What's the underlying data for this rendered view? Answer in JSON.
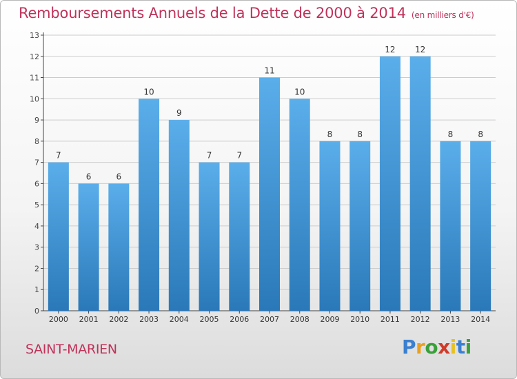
{
  "title": "Remboursements Annuels de la Dette de 2000 à 2014",
  "subtitle": "(en milliers d'€)",
  "city": "SAINT-MARIEN",
  "logo": {
    "text": "Proxiti",
    "letters": [
      "P",
      "r",
      "o",
      "x",
      "i",
      "t",
      "i"
    ],
    "colors": [
      "#3a7fd0",
      "#e8a020",
      "#3aa03a",
      "#d03a2a",
      "#e8c020",
      "#3a7fd0",
      "#3aa03a"
    ]
  },
  "colors": {
    "bar_top": "#5aaeea",
    "bar_bottom": "#2a78b8",
    "text_red": "#c0325a",
    "grid": "#cccccc"
  },
  "chart_data": {
    "type": "bar",
    "title": "Remboursements Annuels de la Dette de 2000 à 2014",
    "categories": [
      "2000",
      "2001",
      "2002",
      "2003",
      "2004",
      "2005",
      "2006",
      "2007",
      "2008",
      "2009",
      "2010",
      "2011",
      "2012",
      "2013",
      "2014"
    ],
    "values": [
      7,
      6,
      6,
      10,
      9,
      7,
      7,
      11,
      10,
      8,
      8,
      12,
      12,
      8,
      8
    ],
    "ylim": [
      0,
      13
    ],
    "yticks": [
      0,
      1,
      2,
      3,
      4,
      5,
      6,
      7,
      8,
      9,
      10,
      11,
      12,
      13
    ],
    "xlabel": "",
    "ylabel": "",
    "grid": true
  }
}
